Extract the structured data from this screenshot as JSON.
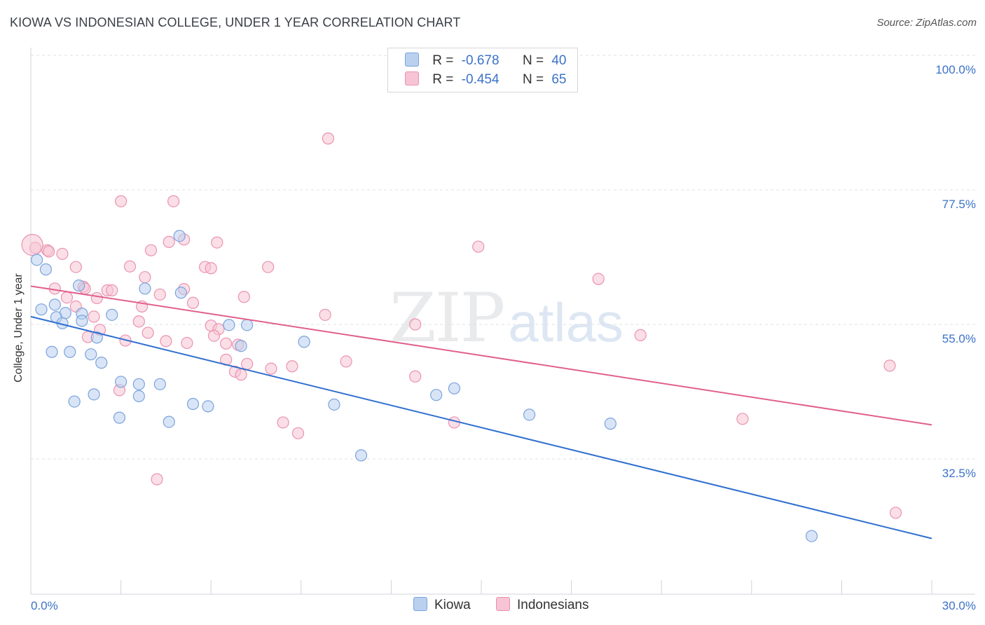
{
  "title": "KIOWA VS INDONESIAN COLLEGE, UNDER 1 YEAR CORRELATION CHART",
  "source": "Source: ZipAtlas.com",
  "watermark": {
    "zip": "ZIP",
    "atlas": "atlas"
  },
  "legend": {
    "rows": [
      {
        "r_label": "R =",
        "r_value": "-0.678",
        "n_label": "N =",
        "n_value": "40"
      },
      {
        "r_label": "R =",
        "r_value": "-0.454",
        "n_label": "N =",
        "n_value": "65"
      }
    ]
  },
  "bottom_legend": {
    "kiowa": "Kiowa",
    "indonesians": "Indonesians"
  },
  "colors": {
    "kiowa_fill": "#b9d0ef",
    "kiowa_stroke": "#7aa3dd",
    "kiowa_line": "#2f6fd0",
    "indo_fill": "#f6c4d4",
    "indo_stroke": "#eb92b0",
    "indo_line": "#e0608c",
    "grid": "#dde0e4",
    "tick_label": "#3b72c8"
  },
  "chart_data": {
    "type": "scatter",
    "title": "KIOWA VS INDONESIAN COLLEGE, UNDER 1 YEAR CORRELATION CHART",
    "xlabel": "",
    "ylabel": "College, Under 1 year",
    "xlim": [
      0,
      30
    ],
    "ylim": [
      10,
      105
    ],
    "x_tick_labels": [
      "0.0%",
      "30.0%"
    ],
    "y_ticks": [
      32.5,
      55.0,
      77.5,
      100.0
    ],
    "y_tick_labels": [
      "32.5%",
      "55.0%",
      "77.5%",
      "100.0%"
    ],
    "grid": "horizontal dashed",
    "legend_position": "top-center",
    "series": [
      {
        "name": "Kiowa",
        "r": -0.678,
        "n": 40,
        "trend": {
          "x0": 0,
          "y0": 56.3,
          "x1": 30,
          "y1": 19.2
        },
        "points": [
          [
            0.2,
            65.8
          ],
          [
            0.5,
            64.2
          ],
          [
            0.8,
            58.3
          ],
          [
            0.35,
            57.5
          ],
          [
            1.15,
            56.9
          ],
          [
            0.85,
            56.2
          ],
          [
            1.7,
            56.8
          ],
          [
            1.05,
            55.2
          ],
          [
            1.7,
            55.6
          ],
          [
            2.7,
            56.6
          ],
          [
            2.2,
            52.8
          ],
          [
            3.8,
            61.0
          ],
          [
            5.0,
            60.3
          ],
          [
            1.6,
            61.5
          ],
          [
            0.7,
            50.4
          ],
          [
            1.3,
            50.4
          ],
          [
            2.0,
            50.0
          ],
          [
            2.35,
            48.6
          ],
          [
            3.0,
            45.4
          ],
          [
            3.6,
            45.0
          ],
          [
            4.3,
            45.0
          ],
          [
            5.4,
            41.7
          ],
          [
            5.9,
            41.3
          ],
          [
            7.0,
            51.4
          ],
          [
            6.6,
            54.9
          ],
          [
            7.2,
            54.9
          ],
          [
            9.1,
            52.1
          ],
          [
            10.1,
            41.6
          ],
          [
            1.45,
            42.1
          ],
          [
            2.1,
            43.3
          ],
          [
            3.6,
            43.0
          ],
          [
            2.95,
            39.4
          ],
          [
            4.6,
            38.7
          ],
          [
            11.0,
            33.1
          ],
          [
            13.5,
            43.2
          ],
          [
            14.1,
            44.3
          ],
          [
            16.6,
            39.9
          ],
          [
            19.3,
            38.4
          ],
          [
            26.0,
            19.6
          ],
          [
            4.95,
            69.8
          ]
        ]
      },
      {
        "name": "Indonesians",
        "r": -0.454,
        "n": 65,
        "trend": {
          "x0": 0,
          "y0": 61.4,
          "x1": 30,
          "y1": 38.2
        },
        "points": [
          [
            0.15,
            67.8
          ],
          [
            0.55,
            67.4
          ],
          [
            0.6,
            67.2
          ],
          [
            1.05,
            66.8
          ],
          [
            1.5,
            64.6
          ],
          [
            3.3,
            64.7
          ],
          [
            4.0,
            67.4
          ],
          [
            5.8,
            64.6
          ],
          [
            6.0,
            64.4
          ],
          [
            7.9,
            64.6
          ],
          [
            0.8,
            61.0
          ],
          [
            1.75,
            61.3
          ],
          [
            2.55,
            60.7
          ],
          [
            2.7,
            60.7
          ],
          [
            3.8,
            62.9
          ],
          [
            4.3,
            60.0
          ],
          [
            5.1,
            60.9
          ],
          [
            6.2,
            68.7
          ],
          [
            4.6,
            68.8
          ],
          [
            5.1,
            69.2
          ],
          [
            3.0,
            75.6
          ],
          [
            4.75,
            75.6
          ],
          [
            9.9,
            86.1
          ],
          [
            14.9,
            68.0
          ],
          [
            18.9,
            62.6
          ],
          [
            1.2,
            59.5
          ],
          [
            1.5,
            58.0
          ],
          [
            2.2,
            59.4
          ],
          [
            3.7,
            58.0
          ],
          [
            5.4,
            58.6
          ],
          [
            7.1,
            59.6
          ],
          [
            2.1,
            56.3
          ],
          [
            2.3,
            54.1
          ],
          [
            3.6,
            55.5
          ],
          [
            3.9,
            53.6
          ],
          [
            6.0,
            54.8
          ],
          [
            6.25,
            54.2
          ],
          [
            1.9,
            52.9
          ],
          [
            3.15,
            52.3
          ],
          [
            4.5,
            52.2
          ],
          [
            5.2,
            51.9
          ],
          [
            6.1,
            53.1
          ],
          [
            6.5,
            51.8
          ],
          [
            6.9,
            51.6
          ],
          [
            9.8,
            56.6
          ],
          [
            12.8,
            55.0
          ],
          [
            20.3,
            53.2
          ],
          [
            6.5,
            49.1
          ],
          [
            7.2,
            48.4
          ],
          [
            8.0,
            47.6
          ],
          [
            8.7,
            48.0
          ],
          [
            10.5,
            48.8
          ],
          [
            6.8,
            47.1
          ],
          [
            7.0,
            46.6
          ],
          [
            12.8,
            46.3
          ],
          [
            2.95,
            44.0
          ],
          [
            14.1,
            38.6
          ],
          [
            8.4,
            38.6
          ],
          [
            8.9,
            36.8
          ],
          [
            4.2,
            29.1
          ],
          [
            23.7,
            39.2
          ],
          [
            28.6,
            48.1
          ],
          [
            28.8,
            23.5
          ],
          [
            0.05,
            68.3
          ],
          [
            1.8,
            61.0
          ]
        ]
      }
    ]
  }
}
